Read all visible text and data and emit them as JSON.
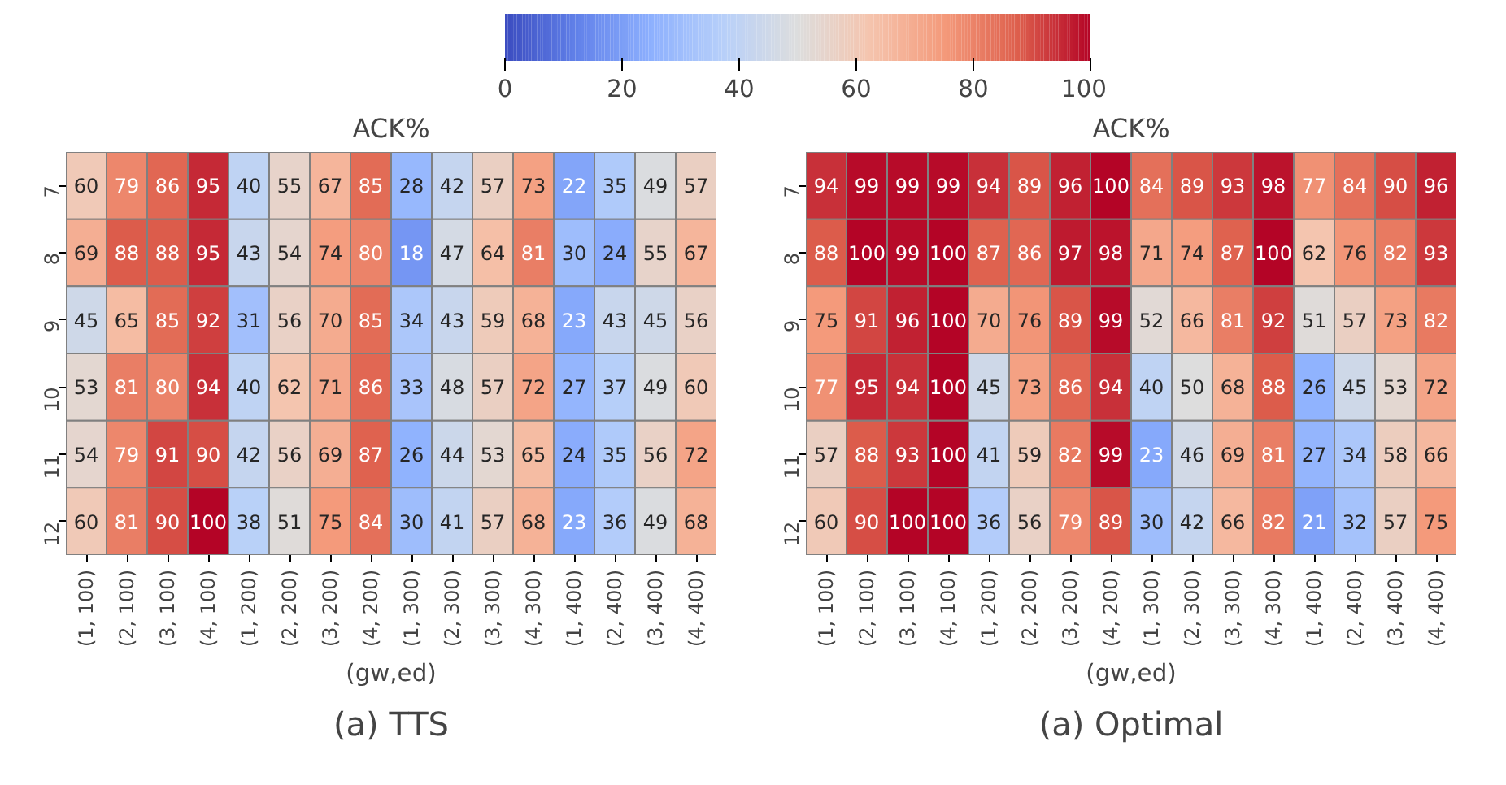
{
  "chart_data": [
    {
      "type": "heatmap",
      "title": "ACK%",
      "xlabel": "(gw,ed)",
      "annotations": [
        "(a) TTS"
      ],
      "categories": [
        "(1, 100)",
        "(2, 100)",
        "(3, 100)",
        "(4, 100)",
        "(1, 200)",
        "(2, 200)",
        "(3, 200)",
        "(4, 200)",
        "(1, 300)",
        "(2, 300)",
        "(3, 300)",
        "(4, 300)",
        "(1, 400)",
        "(2, 400)",
        "(3, 400)",
        "(4, 400)"
      ],
      "y_categories": [
        "7",
        "8",
        "9",
        "10",
        "11",
        "12"
      ],
      "cells": [
        [
          60,
          79,
          86,
          95,
          40,
          55,
          67,
          85,
          28,
          42,
          57,
          73,
          22,
          35,
          49,
          57
        ],
        [
          69,
          88,
          88,
          95,
          43,
          54,
          74,
          80,
          18,
          47,
          64,
          81,
          30,
          24,
          55,
          67
        ],
        [
          45,
          65,
          85,
          92,
          31,
          56,
          70,
          85,
          34,
          43,
          59,
          68,
          23,
          43,
          45,
          56
        ],
        [
          53,
          81,
          80,
          94,
          40,
          62,
          71,
          86,
          33,
          48,
          57,
          72,
          27,
          37,
          49,
          60
        ],
        [
          54,
          79,
          91,
          90,
          42,
          56,
          69,
          87,
          26,
          44,
          53,
          65,
          24,
          35,
          56,
          72
        ],
        [
          60,
          81,
          90,
          100,
          38,
          51,
          75,
          84,
          30,
          41,
          57,
          68,
          23,
          36,
          49,
          68
        ]
      ],
      "clim": [
        0,
        100
      ],
      "cticks": [
        0,
        20,
        40,
        60,
        80,
        100
      ],
      "data_labels": true
    },
    {
      "type": "heatmap",
      "title": "ACK%",
      "xlabel": "(gw,ed)",
      "annotations": [
        "(a) Optimal"
      ],
      "categories": [
        "(1, 100)",
        "(2, 100)",
        "(3, 100)",
        "(4, 100)",
        "(1, 200)",
        "(2, 200)",
        "(3, 200)",
        "(4, 200)",
        "(1, 300)",
        "(2, 300)",
        "(3, 300)",
        "(4, 300)",
        "(1, 400)",
        "(2, 400)",
        "(3, 400)",
        "(4, 400)"
      ],
      "y_categories": [
        "7",
        "8",
        "9",
        "10",
        "11",
        "12"
      ],
      "cells": [
        [
          94,
          99,
          99,
          99,
          94,
          89,
          96,
          100,
          84,
          89,
          93,
          98,
          77,
          84,
          90,
          96
        ],
        [
          88,
          100,
          99,
          100,
          87,
          86,
          97,
          98,
          71,
          74,
          87,
          100,
          62,
          76,
          82,
          93
        ],
        [
          75,
          91,
          96,
          100,
          70,
          76,
          89,
          99,
          52,
          66,
          81,
          92,
          51,
          57,
          73,
          82
        ],
        [
          77,
          95,
          94,
          100,
          45,
          73,
          86,
          94,
          40,
          50,
          68,
          88,
          26,
          45,
          53,
          72
        ],
        [
          57,
          88,
          93,
          100,
          41,
          59,
          82,
          99,
          23,
          46,
          69,
          81,
          27,
          34,
          58,
          66
        ],
        [
          60,
          90,
          100,
          100,
          36,
          56,
          79,
          89,
          30,
          42,
          66,
          82,
          21,
          32,
          57,
          75
        ]
      ],
      "data_labels": true
    }
  ]
}
